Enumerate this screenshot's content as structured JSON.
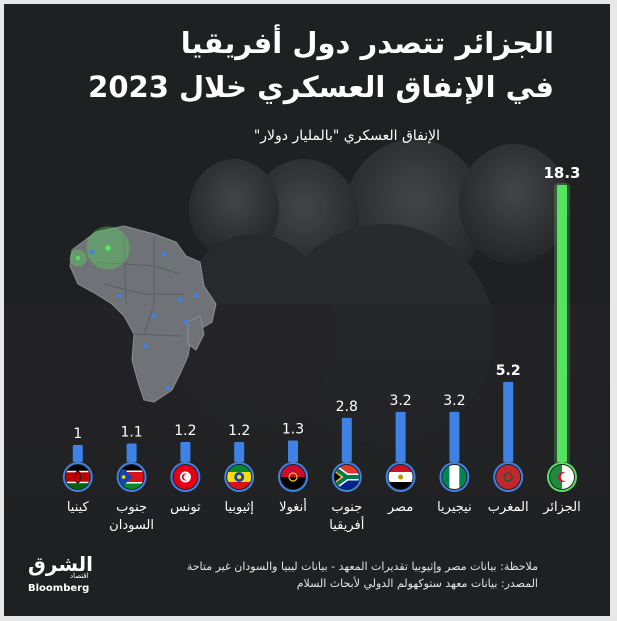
{
  "title": {
    "line1": "الجزائر تتصدر دول أفريقيا",
    "line2": "في الإنفاق العسكري خلال 2023"
  },
  "subtitle": "الإنفاق العسكري \"بالمليار دولار\"",
  "chart_data": {
    "type": "bar",
    "categories": [
      "الجزائر",
      "المغرب",
      "نيجيريا",
      "مصر",
      "جنوب أفريقيا",
      "أنغولا",
      "إثيوبيا",
      "تونس",
      "جنوب السودان",
      "كينيا"
    ],
    "category_lines": [
      [
        "الجزائر"
      ],
      [
        "المغرب"
      ],
      [
        "نيجيريا"
      ],
      [
        "مصر"
      ],
      [
        "جنوب",
        "أفريقيا"
      ],
      [
        "أنغولا"
      ],
      [
        "إثيوبيا"
      ],
      [
        "تونس"
      ],
      [
        "جنوب",
        "السودان"
      ],
      [
        "كينيا"
      ]
    ],
    "value_labels": [
      "18.3",
      "5.2",
      "3.2",
      "3.2",
      "2.8",
      "1.3",
      "1.2",
      "1.2",
      "1.1",
      "1"
    ],
    "values": [
      18.3,
      5.2,
      3.2,
      3.2,
      2.8,
      1.3,
      1.2,
      1.2,
      1.1,
      1.0
    ],
    "flags": [
      "algeria-flag",
      "morocco-flag",
      "nigeria-flag",
      "egypt-flag",
      "south-africa-flag",
      "angola-flag",
      "ethiopia-flag",
      "tunisia-flag",
      "south-sudan-flag",
      "kenya-flag"
    ],
    "highlight_index": 0,
    "bar_color": "#3f82e6",
    "highlight_color": "#56e35f",
    "legend": "none",
    "grid": false
  },
  "notes": {
    "line1": "ملاحظة: بيانات مصر وإثيوبيا تقديرات المعهد - بيانات ليبيا والسودان غير متاحة",
    "line2": "المصدر: بيانات معهد ستوكهولم الدولي لأبحاث السلام"
  },
  "logo": {
    "arabic": "الشرق",
    "small": "اقتصاد",
    "english": "Bloomberg"
  },
  "colors": {
    "background": "#1f2022",
    "map_fill": "#6f7276",
    "map_dots": "#3f82e6"
  }
}
